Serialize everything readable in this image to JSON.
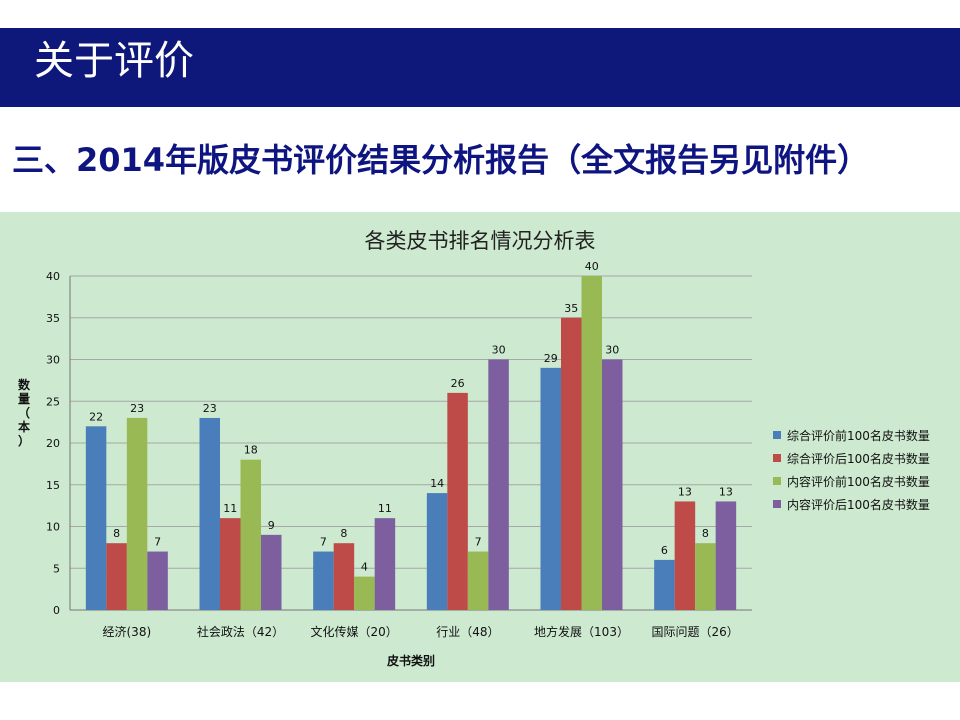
{
  "header": {
    "title": "关于评价"
  },
  "slide": {
    "subtitle": "三、2014年版皮书评价结果分析报告（全文报告另见附件）"
  },
  "colors": {
    "banner": "#0e177a",
    "chart_bg": "#cde9d0",
    "subtitle": "#0e1580"
  },
  "chart_data": {
    "type": "bar",
    "title": "各类皮书排名情况分析表",
    "xlabel": "皮书类别",
    "ylabel": "数量（本）",
    "ylim": [
      0,
      40
    ],
    "yticks": [
      0,
      5,
      10,
      15,
      20,
      25,
      30,
      35,
      40
    ],
    "grid": true,
    "legend_position": "right",
    "categories": [
      "经济(38)",
      "社会政法（42）",
      "文化传媒（20）",
      "行业（48）",
      "地方发展（103）",
      "国际问题（26）"
    ],
    "series": [
      {
        "name": "综合评价前100名皮书数量",
        "color": "#4a7ebb",
        "values": [
          22,
          23,
          7,
          14,
          29,
          6
        ]
      },
      {
        "name": "综合评价后100名皮书数量",
        "color": "#be4b48",
        "values": [
          8,
          11,
          8,
          26,
          35,
          13
        ]
      },
      {
        "name": "内容评价前100名皮书数量",
        "color": "#98b954",
        "values": [
          23,
          18,
          4,
          7,
          40,
          8
        ]
      },
      {
        "name": "内容评价后100名皮书数量",
        "color": "#7d5fa0",
        "values": [
          7,
          9,
          11,
          30,
          30,
          13
        ]
      }
    ]
  }
}
